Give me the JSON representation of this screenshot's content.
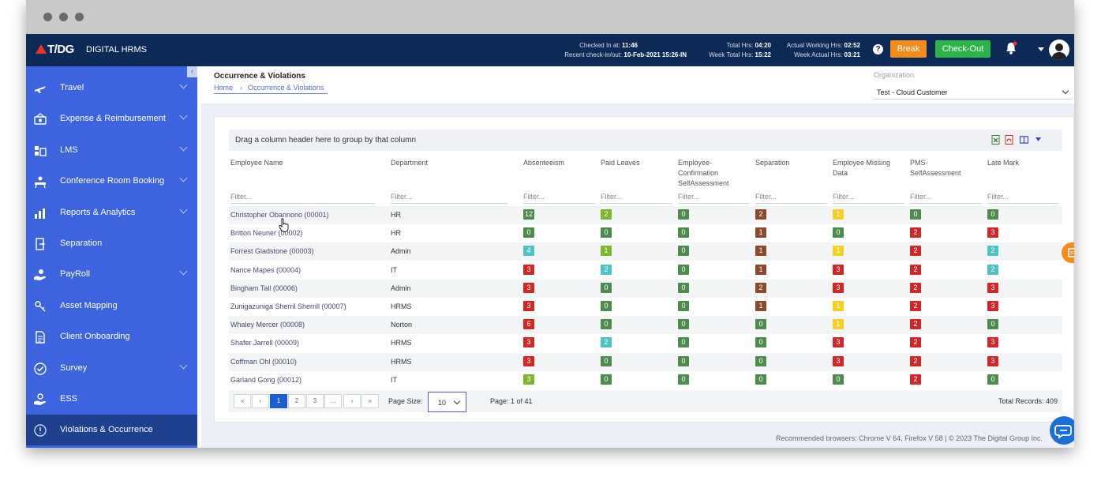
{
  "app": {
    "logo": "T/DG",
    "name": "DIGITAL HRMS"
  },
  "topbar": {
    "checked_in_label": "Checked In at:",
    "checked_in_value": "11:46",
    "recent_label": "Recent check-in/out:",
    "recent_value": "10-Feb-2021 15:26-IN",
    "total_hrs_label": "Total Hrs:",
    "total_hrs_value": "04:20",
    "week_total_label": "Week Total Hrs:",
    "week_total_value": "15:22",
    "actual_label": "Actual Working Hrs:",
    "actual_value": "02:52",
    "week_actual_label": "Week Actual Hrs:",
    "week_actual_value": "03:21",
    "help": "?",
    "break_label": "Break",
    "checkout_label": "Check-Out"
  },
  "sidebar": {
    "collapse": "‹",
    "items": [
      {
        "label": "Travel",
        "icon": "plane-icon",
        "chevron": true
      },
      {
        "label": "Expense & Reimbursement",
        "icon": "expense-icon",
        "chevron": true
      },
      {
        "label": "LMS",
        "icon": "lms-icon",
        "chevron": true
      },
      {
        "label": "Conference Room Booking",
        "icon": "conference-icon",
        "chevron": true
      },
      {
        "label": "Reports & Analytics",
        "icon": "chart-icon",
        "chevron": true
      },
      {
        "label": "Separation",
        "icon": "separation-icon",
        "chevron": false
      },
      {
        "label": "PayRoll",
        "icon": "payroll-icon",
        "chevron": true
      },
      {
        "label": "Asset Mapping",
        "icon": "asset-icon",
        "chevron": false
      },
      {
        "label": "Client Onboarding",
        "icon": "document-icon",
        "chevron": false
      },
      {
        "label": "Survey",
        "icon": "survey-icon",
        "chevron": true
      },
      {
        "label": "ESS",
        "icon": "ess-icon",
        "chevron": false
      },
      {
        "label": "Violations & Occurrence",
        "icon": "violations-icon",
        "chevron": false
      }
    ]
  },
  "header": {
    "title": "Occurrence & Violations",
    "breadcrumb_home": "Home",
    "breadcrumb_sep": "›",
    "breadcrumb_current": "Occurrence & Violations",
    "org_label": "Organization",
    "org_value": "Test - Cloud Customer"
  },
  "grid": {
    "group_hint": "Drag a column header here to group by that column",
    "filter_placeholder": "Filter...",
    "columns": [
      "Employee Name",
      "Department",
      "Absenteeism",
      "Paid Leaves",
      "Employee-Confirmation SelfAssessment",
      "Separation",
      "Employee Missing Data",
      "PMS-SelfAssessment",
      "Late Mark"
    ],
    "rows": [
      {
        "name": "Christopher Obannono (00001)",
        "dept": "HR",
        "vals": [
          "12",
          "2",
          "0",
          "2",
          "1",
          "0",
          "0"
        ],
        "colors": [
          "green",
          "lime",
          "green",
          "brown",
          "yellow",
          "green",
          "green"
        ]
      },
      {
        "name": "Britton Neuner (00002)",
        "dept": "HR",
        "vals": [
          "0",
          "0",
          "0",
          "1",
          "0",
          "2",
          "3"
        ],
        "colors": [
          "green",
          "green",
          "green",
          "brown",
          "green",
          "red",
          "red"
        ]
      },
      {
        "name": "Forrest Gladstone (00003)",
        "dept": "Admin",
        "vals": [
          "4",
          "1",
          "0",
          "1",
          "1",
          "2",
          "2"
        ],
        "colors": [
          "teal",
          "lime",
          "green",
          "brown",
          "yellow",
          "red",
          "teal"
        ]
      },
      {
        "name": "Nance Mapes (00004)",
        "dept": "IT",
        "vals": [
          "3",
          "2",
          "0",
          "1",
          "3",
          "2",
          "2"
        ],
        "colors": [
          "red",
          "teal",
          "green",
          "brown",
          "red",
          "red",
          "teal"
        ]
      },
      {
        "name": "Bingham Tall (00006)",
        "dept": "Admin",
        "vals": [
          "3",
          "0",
          "0",
          "2",
          "3",
          "2",
          "3"
        ],
        "colors": [
          "red",
          "green",
          "green",
          "brown",
          "red",
          "red",
          "red"
        ]
      },
      {
        "name": "Zunigazuniga Sherril Sherrill (00007)",
        "dept": "HRMS",
        "vals": [
          "3",
          "0",
          "0",
          "1",
          "1",
          "2",
          "3"
        ],
        "colors": [
          "red",
          "green",
          "green",
          "brown",
          "yellow",
          "red",
          "red"
        ]
      },
      {
        "name": "Whaley Mercer (00008)",
        "dept": "Norton",
        "vals": [
          "6",
          "0",
          "0",
          "0",
          "1",
          "2",
          "0"
        ],
        "colors": [
          "red",
          "green",
          "green",
          "green",
          "yellow",
          "red",
          "green"
        ]
      },
      {
        "name": "Shafer Jarrell (00009)",
        "dept": "HRMS",
        "vals": [
          "3",
          "2",
          "0",
          "0",
          "3",
          "2",
          "3"
        ],
        "colors": [
          "red",
          "teal",
          "green",
          "green",
          "red",
          "red",
          "red"
        ]
      },
      {
        "name": "Coffman Ohl (00010)",
        "dept": "HRMS",
        "vals": [
          "3",
          "0",
          "0",
          "0",
          "3",
          "2",
          "3"
        ],
        "colors": [
          "red",
          "green",
          "green",
          "green",
          "red",
          "red",
          "red"
        ]
      },
      {
        "name": "Garland Gong (00012)",
        "dept": "IT",
        "vals": [
          "3",
          "0",
          "0",
          "0",
          "0",
          "2",
          "0"
        ],
        "colors": [
          "lime",
          "green",
          "green",
          "green",
          "green",
          "red",
          "green"
        ]
      }
    ]
  },
  "pager": {
    "first": "«",
    "prev": "‹",
    "pages": [
      "1",
      "2",
      "3",
      "..."
    ],
    "next": "›",
    "last": "»",
    "page_size_label": "Page Size:",
    "page_size": "10",
    "page_info": "Page: 1 of 41",
    "total": "Total Records: 409"
  },
  "footer": "Recommended browsers: Chrome V 64, Firefox V 58  |  © 2023 The Digital Group Inc.",
  "colors": {
    "green": "#4f8a4e",
    "lime": "#7cb82f",
    "brown": "#8b4a2b",
    "yellow": "#f5d020",
    "red": "#d32626",
    "teal": "#4fc3c4",
    "nav": "#0d2a57",
    "sidebar": "#3d63de"
  }
}
